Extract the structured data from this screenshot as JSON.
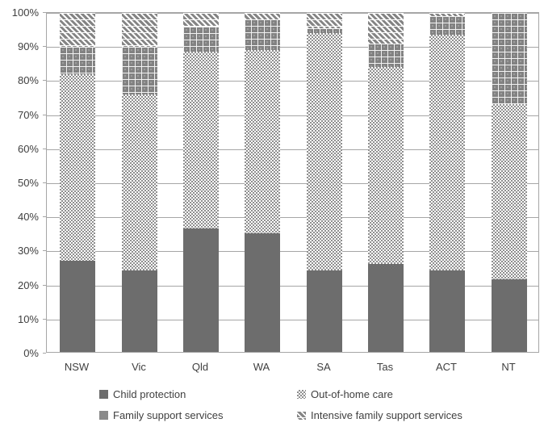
{
  "chart_data": {
    "type": "bar",
    "variant": "100-percent-stacked-column",
    "title": "",
    "xlabel": "",
    "ylabel": "",
    "grid": true,
    "legend_position": "bottom",
    "categories": [
      "NSW",
      "Vic",
      "Qld",
      "WA",
      "SA",
      "Tas",
      "ACT",
      "NT"
    ],
    "series": [
      {
        "name": "Child protection",
        "pattern": "solid",
        "values": [
          27,
          24,
          36.5,
          35,
          24,
          26,
          24,
          21.5
        ]
      },
      {
        "name": "Out-of-home care",
        "pattern": "dots",
        "values": [
          55,
          52,
          52,
          54,
          70,
          58,
          69.5,
          51.5
        ]
      },
      {
        "name": "Family support services",
        "pattern": "squares",
        "values": [
          8,
          14,
          7.5,
          9,
          1.5,
          7,
          5.5,
          27
        ]
      },
      {
        "name": "Intensive family support services",
        "pattern": "hatch",
        "values": [
          10,
          10,
          4,
          2,
          4.5,
          9,
          1,
          0
        ]
      }
    ],
    "y_axis": {
      "min": 0,
      "max": 100,
      "tick_step": 10,
      "tick_labels": [
        "0%",
        "10%",
        "20%",
        "30%",
        "40%",
        "50%",
        "60%",
        "70%",
        "80%",
        "90%",
        "100%"
      ]
    },
    "legend_order": [
      "Child protection",
      "Out-of-home care",
      "Family support services",
      "Intensive family support services"
    ],
    "colors": {
      "child_protection": "#6d6d6d",
      "out_of_home_care_dot": "#8f8f8f",
      "family_support": "#828282",
      "intensive_family_support_hatch": "#848484",
      "gridline": "#a6a6a6",
      "text": "#3f3f3f",
      "background": "#ffffff"
    }
  }
}
